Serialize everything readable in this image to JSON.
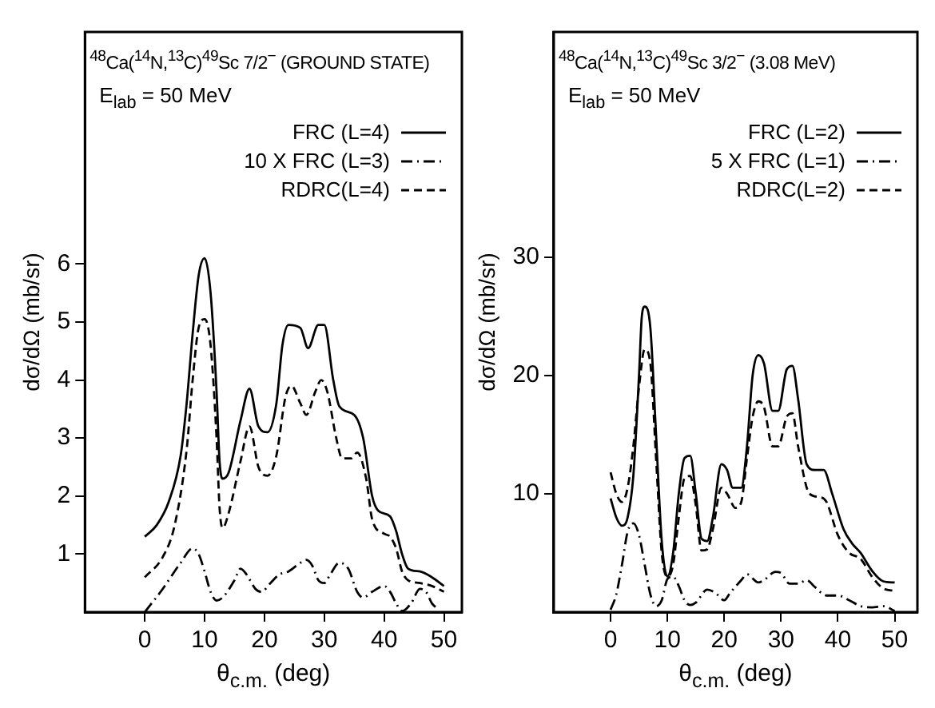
{
  "chart_data": [
    {
      "type": "line",
      "title": "$^{48}$Ca($^{14}$N,$^{13}$C)$^{49}$Sc 7/2$^{−}$ (GROUND STATE)",
      "subtitle": "E$_{lab}$ = 50 MeV",
      "xlabel": "θ$_{c.m.}$ (deg)",
      "ylabel": "dσ/dΩ (mb/sr)",
      "xlim": [
        -10,
        53
      ],
      "ylim": [
        0,
        10
      ],
      "xticks": [
        0,
        10,
        20,
        30,
        40,
        50
      ],
      "yticks": [
        1,
        2,
        3,
        4,
        5,
        6
      ],
      "legend": "top right",
      "series": [
        {
          "name": "FRC (L=4)",
          "color": "#000000",
          "line_style": "solid",
          "x": [
            0,
            2,
            4,
            6,
            7,
            8,
            9,
            10,
            11,
            12,
            12.5,
            13,
            14,
            16,
            17.5,
            19,
            20.5,
            22,
            23,
            24,
            26,
            27.3,
            29,
            30,
            31.5,
            32.5,
            35,
            36.5,
            38,
            39,
            41,
            42,
            43,
            44,
            46,
            48,
            50
          ],
          "values": [
            1.3,
            1.5,
            1.9,
            2.7,
            3.6,
            4.8,
            5.8,
            6.1,
            5.5,
            3.8,
            2.6,
            2.3,
            2.4,
            3.3,
            3.85,
            3.2,
            3.1,
            3.6,
            4.6,
            4.95,
            4.9,
            4.55,
            4.95,
            4.95,
            4.0,
            3.55,
            3.4,
            3.0,
            2.0,
            1.75,
            1.65,
            1.4,
            1.0,
            0.75,
            0.7,
            0.6,
            0.45
          ]
        },
        {
          "name": "10 X FRC (L=3)",
          "color": "#000000",
          "line_style": "dashdot",
          "x": [
            0,
            3,
            6,
            8,
            9,
            10,
            11,
            12,
            13,
            15,
            16,
            17,
            18.5,
            19.5,
            21,
            22.5,
            24,
            26,
            27,
            28,
            29,
            30,
            31,
            32.5,
            34,
            35.5,
            36.5,
            38,
            40,
            41,
            42,
            43,
            44.5,
            46,
            47,
            48,
            49
          ],
          "values": [
            0.0,
            0.4,
            0.85,
            1.1,
            1.0,
            0.7,
            0.35,
            0.2,
            0.25,
            0.55,
            0.75,
            0.65,
            0.4,
            0.35,
            0.5,
            0.65,
            0.7,
            0.85,
            0.9,
            0.8,
            0.55,
            0.5,
            0.65,
            0.85,
            0.75,
            0.35,
            0.25,
            0.35,
            0.45,
            0.35,
            0.15,
            0.02,
            0.15,
            0.4,
            0.35,
            0.15,
            0.05
          ]
        },
        {
          "name": "RDRC(L=4)",
          "color": "#000000",
          "line_style": "dashed",
          "x": [
            0,
            3,
            5,
            7,
            8,
            9,
            10,
            11,
            12,
            12.5,
            13,
            14,
            16,
            17.5,
            19,
            20.5,
            22,
            23.5,
            24.5,
            26,
            27,
            28.5,
            29.5,
            30.5,
            32,
            33,
            34.5,
            35.5,
            37,
            38,
            40,
            41,
            42,
            43,
            44,
            46,
            48,
            50
          ],
          "values": [
            0.6,
            0.95,
            1.5,
            2.8,
            4.0,
            4.9,
            5.05,
            4.6,
            3.0,
            1.8,
            1.45,
            1.7,
            2.6,
            3.2,
            2.5,
            2.35,
            2.7,
            3.7,
            3.9,
            3.6,
            3.4,
            3.8,
            4.0,
            3.8,
            3.0,
            2.65,
            2.65,
            2.75,
            2.3,
            1.6,
            1.35,
            1.3,
            1.1,
            0.7,
            0.55,
            0.5,
            0.45,
            0.35
          ]
        }
      ]
    },
    {
      "type": "line",
      "title": "$^{48}$Ca($^{14}$N,$^{13}$C)$^{49}$Sc 3/2$^{−}$ (3.08 MeV)",
      "subtitle": "E$_{lab}$ = 50 MeV",
      "xlabel": "θ$_{c.m.}$ (deg)",
      "ylabel": "dσ/dΩ (mb/sr)",
      "xlim": [
        -10,
        54
      ],
      "ylim": [
        0,
        49
      ],
      "xticks": [
        0,
        10,
        20,
        30,
        40,
        50
      ],
      "yticks": [
        10,
        20,
        30
      ],
      "legend": "top right",
      "series": [
        {
          "name": "FRC (L=2)",
          "color": "#000000",
          "line_style": "solid",
          "x": [
            0,
            1,
            2,
            3,
            4,
            5,
            5.5,
            6,
            7,
            8,
            9,
            10,
            11,
            12,
            13,
            14,
            15,
            16,
            17,
            18,
            19.5,
            20.5,
            21.5,
            23,
            24,
            25,
            26,
            27,
            28.5,
            29.5,
            31,
            32,
            33,
            34.5,
            36,
            37.5,
            39,
            41,
            42.5,
            44,
            46,
            48,
            50
          ],
          "values": [
            9.6,
            8.0,
            7.3,
            8.0,
            11.5,
            20,
            25.0,
            25.8,
            24,
            15,
            6,
            3.0,
            5,
            10,
            13,
            13.2,
            10,
            6.2,
            6.0,
            8,
            12.5,
            12.0,
            10.5,
            10.5,
            14,
            20,
            21.7,
            21,
            17,
            17,
            20.5,
            20.8,
            18,
            12.5,
            12,
            12,
            10,
            7,
            5.8,
            5,
            3.5,
            2.6,
            2.5
          ]
        },
        {
          "name": "5 X FRC (L=1)",
          "color": "#000000",
          "line_style": "dashdot",
          "x": [
            0,
            1,
            2,
            3,
            4,
            5,
            6,
            7,
            8,
            9,
            10,
            11,
            12,
            13,
            14,
            15,
            17,
            18.5,
            20,
            21,
            23,
            24,
            26,
            27,
            29,
            30,
            31.5,
            33,
            34.5,
            36,
            38,
            40,
            42,
            44,
            46,
            48,
            50
          ],
          "values": [
            0.2,
            1.5,
            4,
            6.8,
            7.5,
            6.5,
            4,
            1.5,
            0.5,
            1,
            2.8,
            3.0,
            2.2,
            1.0,
            0.6,
            0.8,
            1.9,
            1.6,
            1.0,
            1.6,
            2.7,
            3.2,
            2.5,
            2.7,
            3.4,
            3.3,
            2.4,
            2.4,
            2.7,
            2.1,
            1.4,
            1.4,
            1.0,
            0.5,
            0.4,
            0.5,
            0.1
          ]
        },
        {
          "name": "RDRC(L=2)",
          "color": "#000000",
          "line_style": "dashed",
          "x": [
            0,
            1,
            2,
            3,
            4,
            5,
            6,
            7,
            8,
            9,
            10,
            11,
            12,
            13,
            14,
            15,
            16,
            17,
            18,
            19.5,
            20.5,
            22,
            23,
            24,
            25,
            26,
            27,
            28.5,
            29.5,
            31,
            32,
            33,
            35,
            37,
            38,
            40,
            42,
            44,
            46,
            48,
            50
          ],
          "values": [
            11.8,
            10,
            9.3,
            10.5,
            14,
            19,
            22.2,
            21,
            13,
            5,
            3.0,
            4,
            8,
            11.3,
            11.5,
            9,
            5.2,
            5.3,
            7,
            10.5,
            10,
            8.8,
            9.3,
            13,
            16.5,
            17.8,
            17.3,
            14,
            14,
            16.5,
            16.8,
            14,
            10,
            9.7,
            9.3,
            6.5,
            5.0,
            4.5,
            3.0,
            2.0,
            1.8
          ]
        }
      ]
    }
  ]
}
